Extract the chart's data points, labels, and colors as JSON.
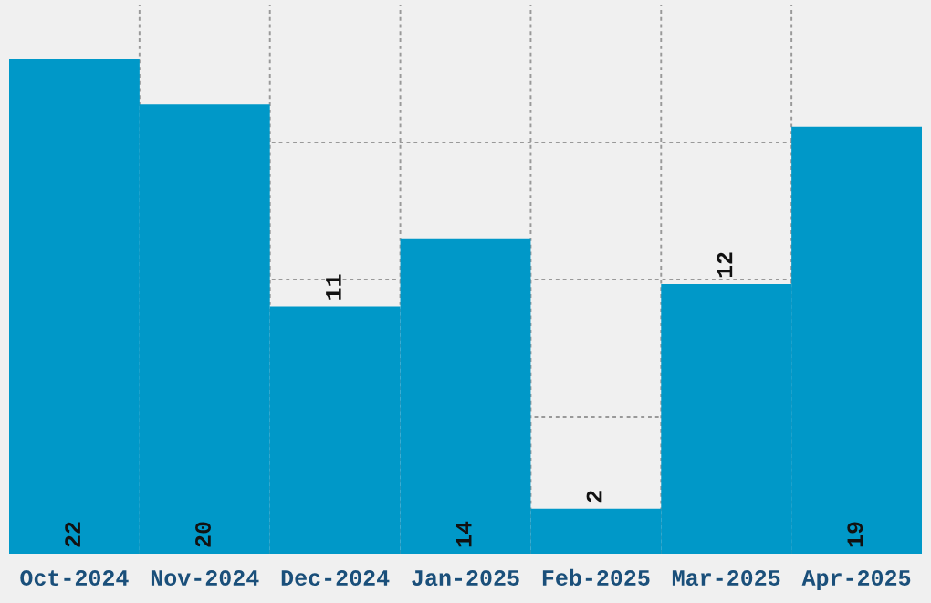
{
  "chart_data": {
    "type": "bar",
    "categories": [
      "Oct-2024",
      "Nov-2024",
      "Dec-2024",
      "Jan-2025",
      "Feb-2025",
      "Mar-2025",
      "Apr-2025"
    ],
    "values": [
      22,
      20,
      11,
      14,
      2,
      12,
      19
    ],
    "color": "#0098c8",
    "ylim": [
      0,
      24.4
    ],
    "yticks": [
      {
        "value": 6.1,
        "label": null
      },
      {
        "value": 12.2,
        "label": null
      },
      {
        "value": 18.3,
        "label": null
      }
    ],
    "tick_labels": "x",
    "grid": true,
    "data_labels": true
  }
}
